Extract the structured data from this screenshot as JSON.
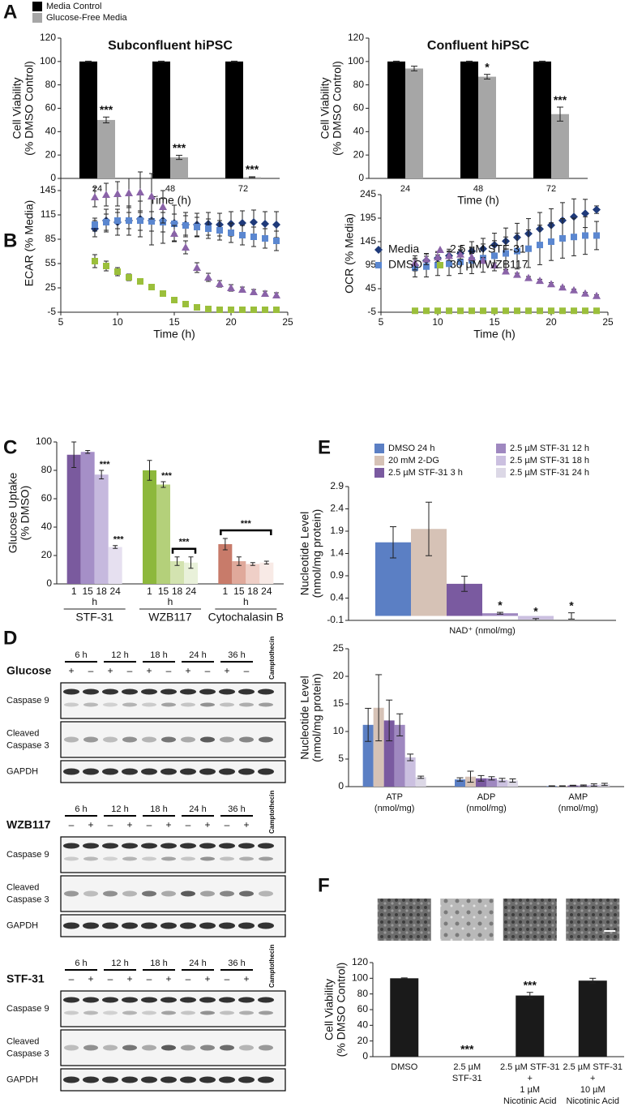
{
  "panel_labels": [
    "A",
    "B",
    "C",
    "D",
    "E",
    "F"
  ],
  "chart_data": [
    {
      "type": "bar",
      "title": "Subconfluent hiPSC",
      "categories": [
        "24",
        "48",
        "72"
      ],
      "xlabel": "Time (h)",
      "ylabel": [
        "Cell Viability",
        "(% DMSO Control)"
      ],
      "ylim": [
        0,
        120
      ],
      "yticks": [
        0,
        20,
        40,
        60,
        80,
        100,
        120
      ],
      "series": [
        {
          "name": "Media Control",
          "color": "#000000",
          "values": [
            100,
            100,
            100
          ],
          "errors": [
            0.3,
            0.3,
            0.3
          ]
        },
        {
          "name": "Glucose-Free Media",
          "color": "#a6a6a6",
          "values": [
            50,
            18,
            1
          ],
          "errors": [
            2.5,
            1.8,
            0.4
          ],
          "stars": [
            "***",
            "***",
            "***"
          ]
        }
      ]
    },
    {
      "type": "bar",
      "title": "Confluent hiPSC",
      "categories": [
        "24",
        "48",
        "72"
      ],
      "xlabel": "Time (h)",
      "ylabel": [
        "Cell Viability",
        "(% DMSO Control)"
      ],
      "ylim": [
        0,
        120
      ],
      "yticks": [
        0,
        20,
        40,
        60,
        80,
        100,
        120
      ],
      "series": [
        {
          "color": "#000000",
          "values": [
            100,
            100,
            100
          ],
          "errors": [
            0.3,
            0.3,
            0.3
          ]
        },
        {
          "color": "#a6a6a6",
          "values": [
            94,
            87,
            55
          ],
          "errors": [
            2,
            2,
            6
          ],
          "stars": [
            null,
            "*",
            "***"
          ]
        }
      ]
    },
    {
      "type": "scatter",
      "xlabel": "Time (h)",
      "ylabel": [
        "ECAR (% Media)"
      ],
      "xlim": [
        5,
        25
      ],
      "xticks": [
        5,
        10,
        15,
        20,
        25
      ],
      "ylim": [
        -5,
        165
      ],
      "yticks": [
        -5,
        25,
        55,
        85,
        115,
        145
      ],
      "x": [
        8,
        9,
        10,
        11,
        12,
        13,
        14,
        15,
        16,
        17,
        18,
        19,
        20,
        21,
        22,
        23,
        24
      ],
      "series": [
        {
          "name": "Media",
          "color": "#1f3a7a",
          "marker": "diamond",
          "values": [
            98,
            108,
            106,
            108,
            110,
            108,
            108,
            105,
            103,
            103,
            104,
            103,
            104,
            105,
            106,
            104,
            103
          ],
          "errors": [
            10,
            14,
            16,
            18,
            22,
            30,
            28,
            22,
            15,
            14,
            14,
            14,
            15,
            15,
            15,
            15,
            16
          ]
        },
        {
          "name": "DMSO",
          "color": "#5b87d0",
          "marker": "square",
          "values": [
            103,
            106,
            108,
            108,
            108,
            107,
            106,
            104,
            102,
            100,
            98,
            96,
            93,
            90,
            88,
            86,
            83
          ],
          "errors": [
            8,
            10,
            10,
            10,
            12,
            12,
            12,
            12,
            12,
            12,
            12,
            12,
            12,
            12,
            12,
            12,
            12
          ]
        },
        {
          "name": "2.5 µM STF-31",
          "color": "#8a63a8",
          "marker": "triangle",
          "values": [
            137,
            140,
            141,
            142,
            143,
            138,
            125,
            92,
            75,
            50,
            38,
            30,
            25,
            23,
            20,
            18,
            16
          ],
          "errors": [
            12,
            14,
            15,
            18,
            25,
            28,
            20,
            10,
            8,
            6,
            5,
            4,
            4,
            3,
            3,
            3,
            3
          ]
        },
        {
          "name": "30 µM WZB117",
          "color": "#9bbf3b",
          "marker": "square",
          "values": [
            58,
            52,
            45,
            38,
            33,
            26,
            18,
            10,
            5,
            1,
            -1,
            -2,
            -2,
            -2,
            -2,
            -2,
            -2
          ],
          "errors": [
            8,
            6,
            5,
            4,
            3,
            2,
            2,
            1,
            1,
            1,
            1,
            1,
            1,
            1,
            1,
            1,
            1
          ]
        }
      ]
    },
    {
      "type": "scatter",
      "xlabel": "Time (h)",
      "ylabel": [
        "OCR (% Media)"
      ],
      "xlim": [
        5,
        25
      ],
      "xticks": [
        5,
        10,
        15,
        20,
        25
      ],
      "ylim": [
        -5,
        245
      ],
      "yticks": [
        -5,
        45,
        95,
        145,
        195,
        245
      ],
      "x": [
        8,
        9,
        10,
        11,
        12,
        13,
        14,
        15,
        16,
        17,
        18,
        19,
        20,
        21,
        22,
        23,
        24
      ],
      "series": [
        {
          "color": "#1f3a7a",
          "marker": "diamond",
          "values": [
            95,
            105,
            110,
            115,
            120,
            125,
            130,
            138,
            146,
            154,
            162,
            172,
            180,
            190,
            198,
            205,
            213
          ],
          "errors": [
            12,
            14,
            14,
            14,
            15,
            20,
            22,
            25,
            28,
            30,
            32,
            35,
            35,
            38,
            38,
            30,
            8
          ]
        },
        {
          "color": "#5b87d0",
          "marker": "square",
          "values": [
            90,
            92,
            95,
            98,
            102,
            105,
            110,
            115,
            120,
            125,
            130,
            138,
            145,
            152,
            155,
            158,
            158
          ],
          "errors": [
            20,
            22,
            22,
            25,
            25,
            28,
            30,
            32,
            35,
            38,
            40,
            42,
            40,
            42,
            40,
            40,
            30
          ]
        },
        {
          "color": "#8a63a8",
          "marker": "triangle",
          "values": [
            100,
            108,
            112,
            115,
            118,
            112,
            105,
            95,
            82,
            75,
            68,
            62,
            55,
            48,
            42,
            35,
            30
          ],
          "errors": [
            15,
            12,
            10,
            10,
            10,
            8,
            6,
            5,
            4,
            3,
            3,
            3,
            3,
            2,
            2,
            2,
            2
          ]
        },
        {
          "color": "#9bbf3b",
          "marker": "square",
          "values": [
            -2,
            -2,
            -2,
            -2,
            -2,
            -2,
            -2,
            -2,
            -2,
            -2,
            -2,
            -2,
            -2,
            -2,
            -2,
            -2,
            -2
          ],
          "errors": [
            1,
            1,
            1,
            1,
            1,
            1,
            1,
            1,
            1,
            1,
            1,
            1,
            1,
            1,
            1,
            1,
            1
          ]
        }
      ]
    },
    {
      "type": "grouped_bar",
      "ylabel": [
        "Glucose Uptake",
        "(% DMSO)"
      ],
      "ylim": [
        0,
        100
      ],
      "yticks": [
        0,
        20,
        40,
        60,
        80,
        100
      ],
      "unit": "h",
      "groups": [
        {
          "name": "STF-31",
          "categories": [
            "1",
            "15",
            "18",
            "24"
          ],
          "values": [
            91,
            93,
            77,
            26
          ],
          "errors": [
            9,
            1,
            3,
            1
          ],
          "colors": [
            "#7a5a9e",
            "#a58fc7",
            "#c6b9de",
            "#e6e0f0"
          ],
          "stars": [
            null,
            null,
            "***",
            "***"
          ]
        },
        {
          "name": "WZB117",
          "categories": [
            "1",
            "15",
            "18",
            "24"
          ],
          "values": [
            80,
            70,
            16,
            15
          ],
          "errors": [
            7,
            2,
            3,
            4
          ],
          "colors": [
            "#8db83c",
            "#b4d07a",
            "#d3e3b0",
            "#e9f1da"
          ],
          "stars": [
            null,
            "***",
            null,
            null
          ],
          "bracket": "***"
        },
        {
          "name": "Cytochalasin B",
          "categories": [
            "1",
            "15",
            "18",
            "24"
          ],
          "values": [
            28,
            16,
            14,
            15
          ],
          "errors": [
            4,
            3,
            1,
            1
          ],
          "colors": [
            "#c87b6a",
            "#e0a99b",
            "#efcfc7",
            "#f8eae6"
          ],
          "bracket": "***"
        }
      ]
    },
    {
      "type": "bar",
      "categories": [
        "NAD⁺ (nmol/mg)"
      ],
      "ylabel": [
        "Nucleotide Level",
        "(nmol/mg protein)"
      ],
      "ylim": [
        -0.1,
        2.9
      ],
      "yticks": [
        -0.1,
        0.4,
        0.9,
        1.4,
        1.9,
        2.4,
        2.9
      ],
      "series": [
        {
          "name": "DMSO 24 h",
          "color": "#5b7fc4",
          "values": [
            1.65
          ],
          "errors": [
            0.35
          ]
        },
        {
          "name": "20 mM 2-DG",
          "color": "#d6c2b6",
          "values": [
            1.95
          ],
          "errors": [
            0.6
          ]
        },
        {
          "name": "2.5 µM STF-31 3 h",
          "color": "#7a5aa0",
          "values": [
            0.72
          ],
          "errors": [
            0.17
          ]
        },
        {
          "name": "2.5 µM STF-31 12 h",
          "color": "#9f88c0",
          "values": [
            0.06
          ],
          "errors": [
            0.02
          ],
          "stars": [
            "*"
          ]
        },
        {
          "name": "2.5 µM STF-31 18 h",
          "color": "#cbc0e0",
          "values": [
            -0.08
          ],
          "errors": [
            0.02
          ],
          "stars": [
            "*"
          ]
        },
        {
          "name": "2.5 µM STF-31 24 h",
          "color": "#dcd8e6",
          "values": [
            0.0
          ],
          "errors": [
            0.07
          ],
          "stars": [
            "*"
          ]
        }
      ]
    },
    {
      "type": "bar",
      "categories": [
        [
          "ATP",
          "(nmol/mg)"
        ],
        [
          "ADP",
          "(nmol/mg)"
        ],
        [
          "AMP",
          "(nmol/mg)"
        ]
      ],
      "ylabel": [
        "Nucleotide Level",
        "(nmol/mg protein)"
      ],
      "ylim": [
        0,
        25
      ],
      "yticks": [
        0,
        5,
        10,
        15,
        20,
        25
      ],
      "series": [
        {
          "color": "#5b7fc4",
          "values": [
            11.2,
            1.3,
            0.1
          ],
          "errors": [
            3,
            0.3,
            0.05
          ]
        },
        {
          "color": "#d6c2b6",
          "values": [
            14.3,
            1.8,
            0.1
          ],
          "errors": [
            6,
            1,
            0.05
          ]
        },
        {
          "color": "#7a5aa0",
          "values": [
            12.0,
            1.5,
            0.2
          ],
          "errors": [
            3.7,
            0.5,
            0.05
          ]
        },
        {
          "color": "#9f88c0",
          "values": [
            11.2,
            1.5,
            0.2
          ],
          "errors": [
            2,
            0.3,
            0.1
          ]
        },
        {
          "color": "#cbc0e0",
          "values": [
            5.3,
            1.2,
            0.3
          ],
          "errors": [
            0.6,
            0.3,
            0.2
          ]
        },
        {
          "color": "#dcd8e6",
          "values": [
            1.7,
            1.1,
            0.4
          ],
          "errors": [
            0.2,
            0.3,
            0.2
          ]
        }
      ]
    },
    {
      "type": "bar",
      "categories": [
        [
          "DMSO"
        ],
        [
          "2.5 µM",
          "STF-31"
        ],
        [
          "2.5 µM STF-31",
          "+",
          "1 µM",
          "Nicotinic Acid"
        ],
        [
          "2.5 µM STF-31",
          "+",
          "10 µM",
          "Nicotinic Acid"
        ]
      ],
      "ylabel": [
        "Cell Viability",
        "(% DMSO Control)"
      ],
      "ylim": [
        0,
        120
      ],
      "yticks": [
        0,
        20,
        40,
        60,
        80,
        100,
        120
      ],
      "series": [
        {
          "color": "#1a1a1a",
          "values": [
            100,
            0,
            78,
            97
          ],
          "errors": [
            0.5,
            0,
            4,
            3
          ],
          "stars": [
            null,
            "***",
            "***",
            null
          ]
        }
      ]
    }
  ],
  "blots": [
    {
      "treatment": "Glucose",
      "times": [
        "6 h",
        "12 h",
        "18 h",
        "24 h",
        "36 h"
      ],
      "signs": [
        "+",
        "–",
        "+",
        "–",
        "+",
        "–",
        "+",
        "–",
        "+",
        "–"
      ],
      "control": "Camptothecin",
      "rows": [
        [
          "Caspase 9"
        ],
        [
          "Cleaved",
          "Caspase 3"
        ],
        [
          "GAPDH"
        ]
      ]
    },
    {
      "treatment": "WZB117",
      "times": [
        "6 h",
        "12 h",
        "18 h",
        "24 h",
        "36 h"
      ],
      "signs": [
        "–",
        "+",
        "–",
        "+",
        "–",
        "+",
        "–",
        "+",
        "–",
        "+"
      ],
      "control": "Camptothecin",
      "rows": [
        [
          "Caspase 9"
        ],
        [
          "Cleaved",
          "Caspase 3"
        ],
        [
          "GAPDH"
        ]
      ]
    },
    {
      "treatment": "STF-31",
      "times": [
        "6 h",
        "12 h",
        "18 h",
        "24 h",
        "36 h"
      ],
      "signs": [
        "–",
        "+",
        "–",
        "+",
        "–",
        "+",
        "–",
        "+",
        "–",
        "+"
      ],
      "control": "Camptothecin",
      "rows": [
        [
          "Caspase 9"
        ],
        [
          "Cleaved",
          "Caspase 3"
        ],
        [
          "GAPDH"
        ]
      ]
    }
  ]
}
